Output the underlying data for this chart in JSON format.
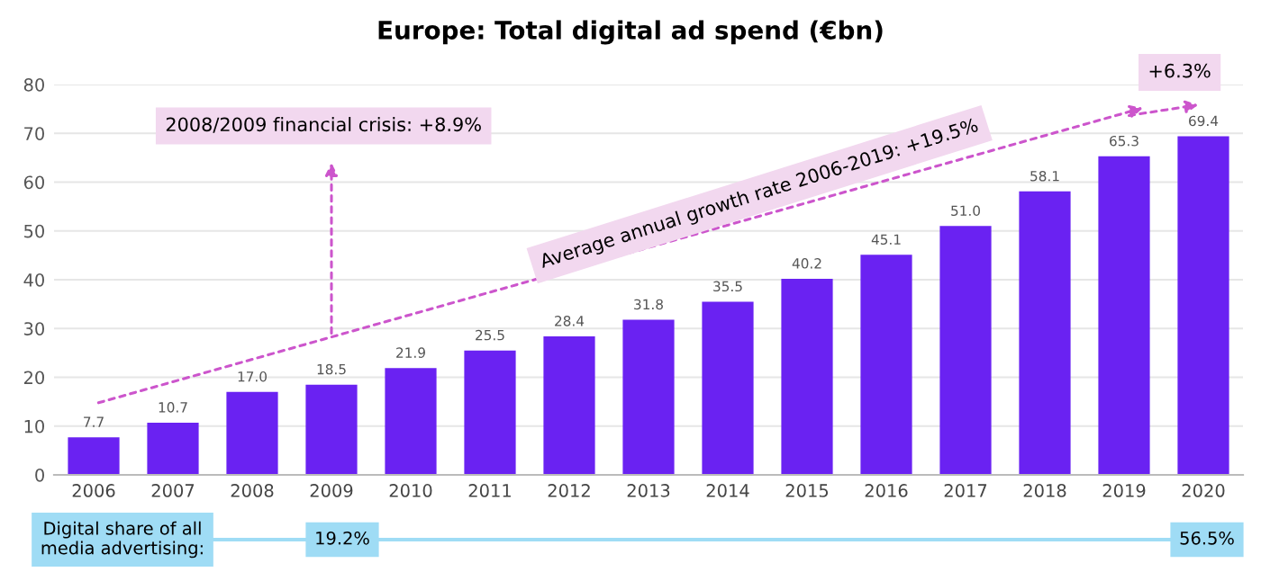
{
  "chart_data": {
    "type": "bar",
    "title": "Europe: Total digital ad spend (€bn)",
    "categories": [
      "2006",
      "2007",
      "2008",
      "2009",
      "2010",
      "2011",
      "2012",
      "2013",
      "2014",
      "2015",
      "2016",
      "2017",
      "2018",
      "2019",
      "2020"
    ],
    "values": [
      7.7,
      10.7,
      17.0,
      18.5,
      21.9,
      25.5,
      28.4,
      31.8,
      35.5,
      40.2,
      45.1,
      51.0,
      58.1,
      65.3,
      69.4
    ],
    "value_labels": [
      "7.7",
      "10.7",
      "17.0",
      "18.5",
      "21.9",
      "25.5",
      "28.4",
      "31.8",
      "35.5",
      "40.2",
      "45.1",
      "51.0",
      "58.1",
      "65.3",
      "69.4"
    ],
    "color": "#6a22f2",
    "ylim": [
      0,
      80
    ],
    "yticks": [
      0,
      10,
      20,
      30,
      40,
      50,
      60,
      70,
      80
    ],
    "grid": "y",
    "annotations": [
      "2008/2009 financial crisis: +8.9%",
      "Average annual growth rate 2006-2019: +19.5%",
      "+6.3%",
      "Digital share of all media advertising:",
      "19.2%",
      "56.5%"
    ]
  }
}
